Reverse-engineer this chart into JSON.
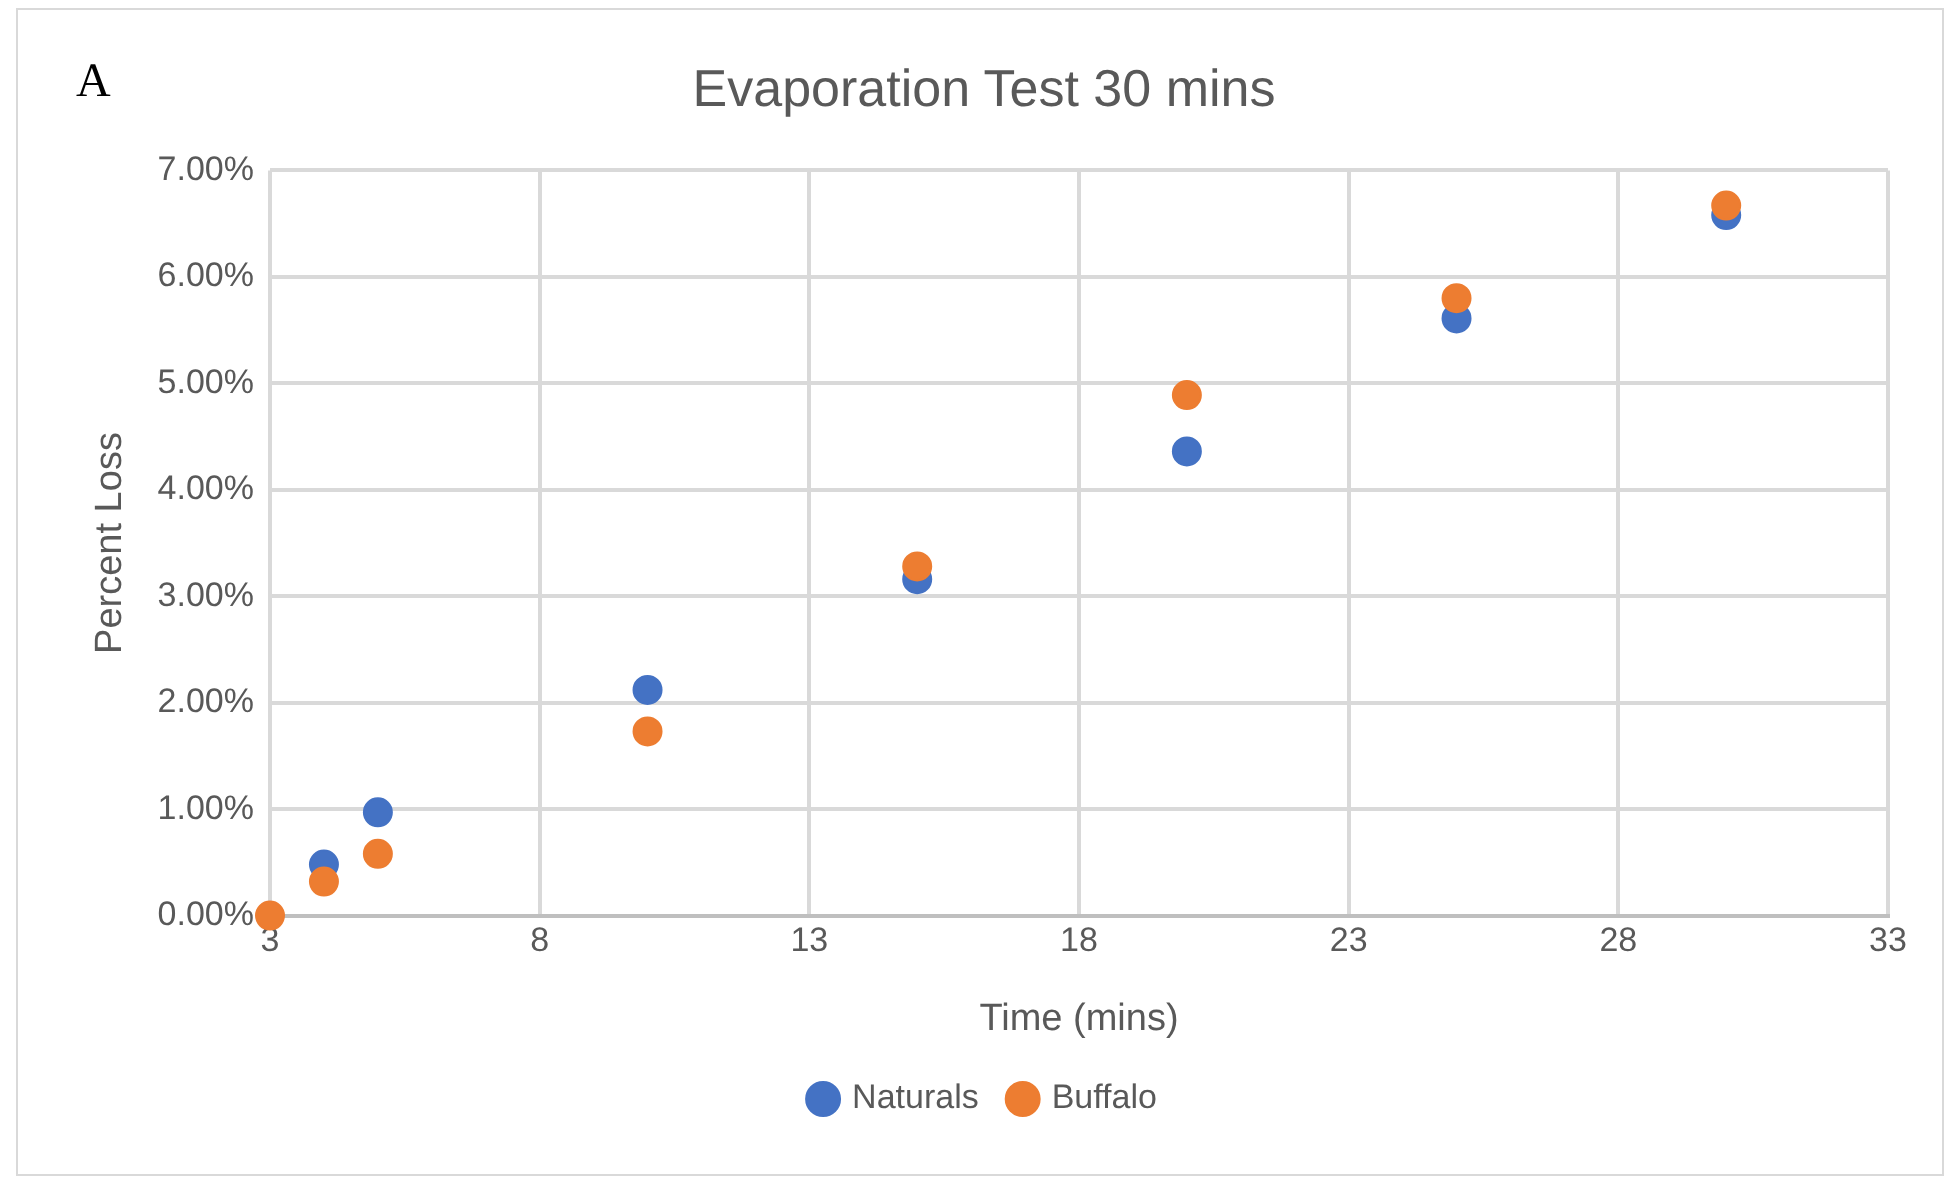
{
  "chart_data": {
    "type": "scatter",
    "title": "Evaporation Test 30 mins",
    "xlabel": "Time (mins)",
    "ylabel": "Percent Loss",
    "annotations": [
      "A"
    ],
    "x": [
      3,
      4,
      5,
      10,
      15,
      20,
      25,
      30
    ],
    "series": [
      {
        "name": "Naturals",
        "color": "#4472c4",
        "values": [
          null,
          0.48,
          0.97,
          2.12,
          3.16,
          4.36,
          5.61,
          6.58
        ]
      },
      {
        "name": "Buffalo",
        "color": "#ed7d31",
        "values": [
          0,
          0.32,
          0.58,
          1.73,
          3.28,
          4.89,
          5.8,
          6.67
        ]
      }
    ],
    "xlim": [
      3,
      33
    ],
    "xticks": [
      3,
      8,
      13,
      18,
      23,
      28,
      33
    ],
    "ylim": [
      0,
      7
    ],
    "yticks": [
      {
        "value": 0,
        "label": "0.00%"
      },
      {
        "value": 1,
        "label": "1.00%"
      },
      {
        "value": 2,
        "label": "2.00%"
      },
      {
        "value": 3,
        "label": "3.00%"
      },
      {
        "value": 4,
        "label": "4.00%"
      },
      {
        "value": 5,
        "label": "5.00%"
      },
      {
        "value": 6,
        "label": "6.00%"
      },
      {
        "value": 7,
        "label": "7.00%"
      }
    ],
    "grid": true,
    "legend": "bottom",
    "marker": "circle"
  }
}
